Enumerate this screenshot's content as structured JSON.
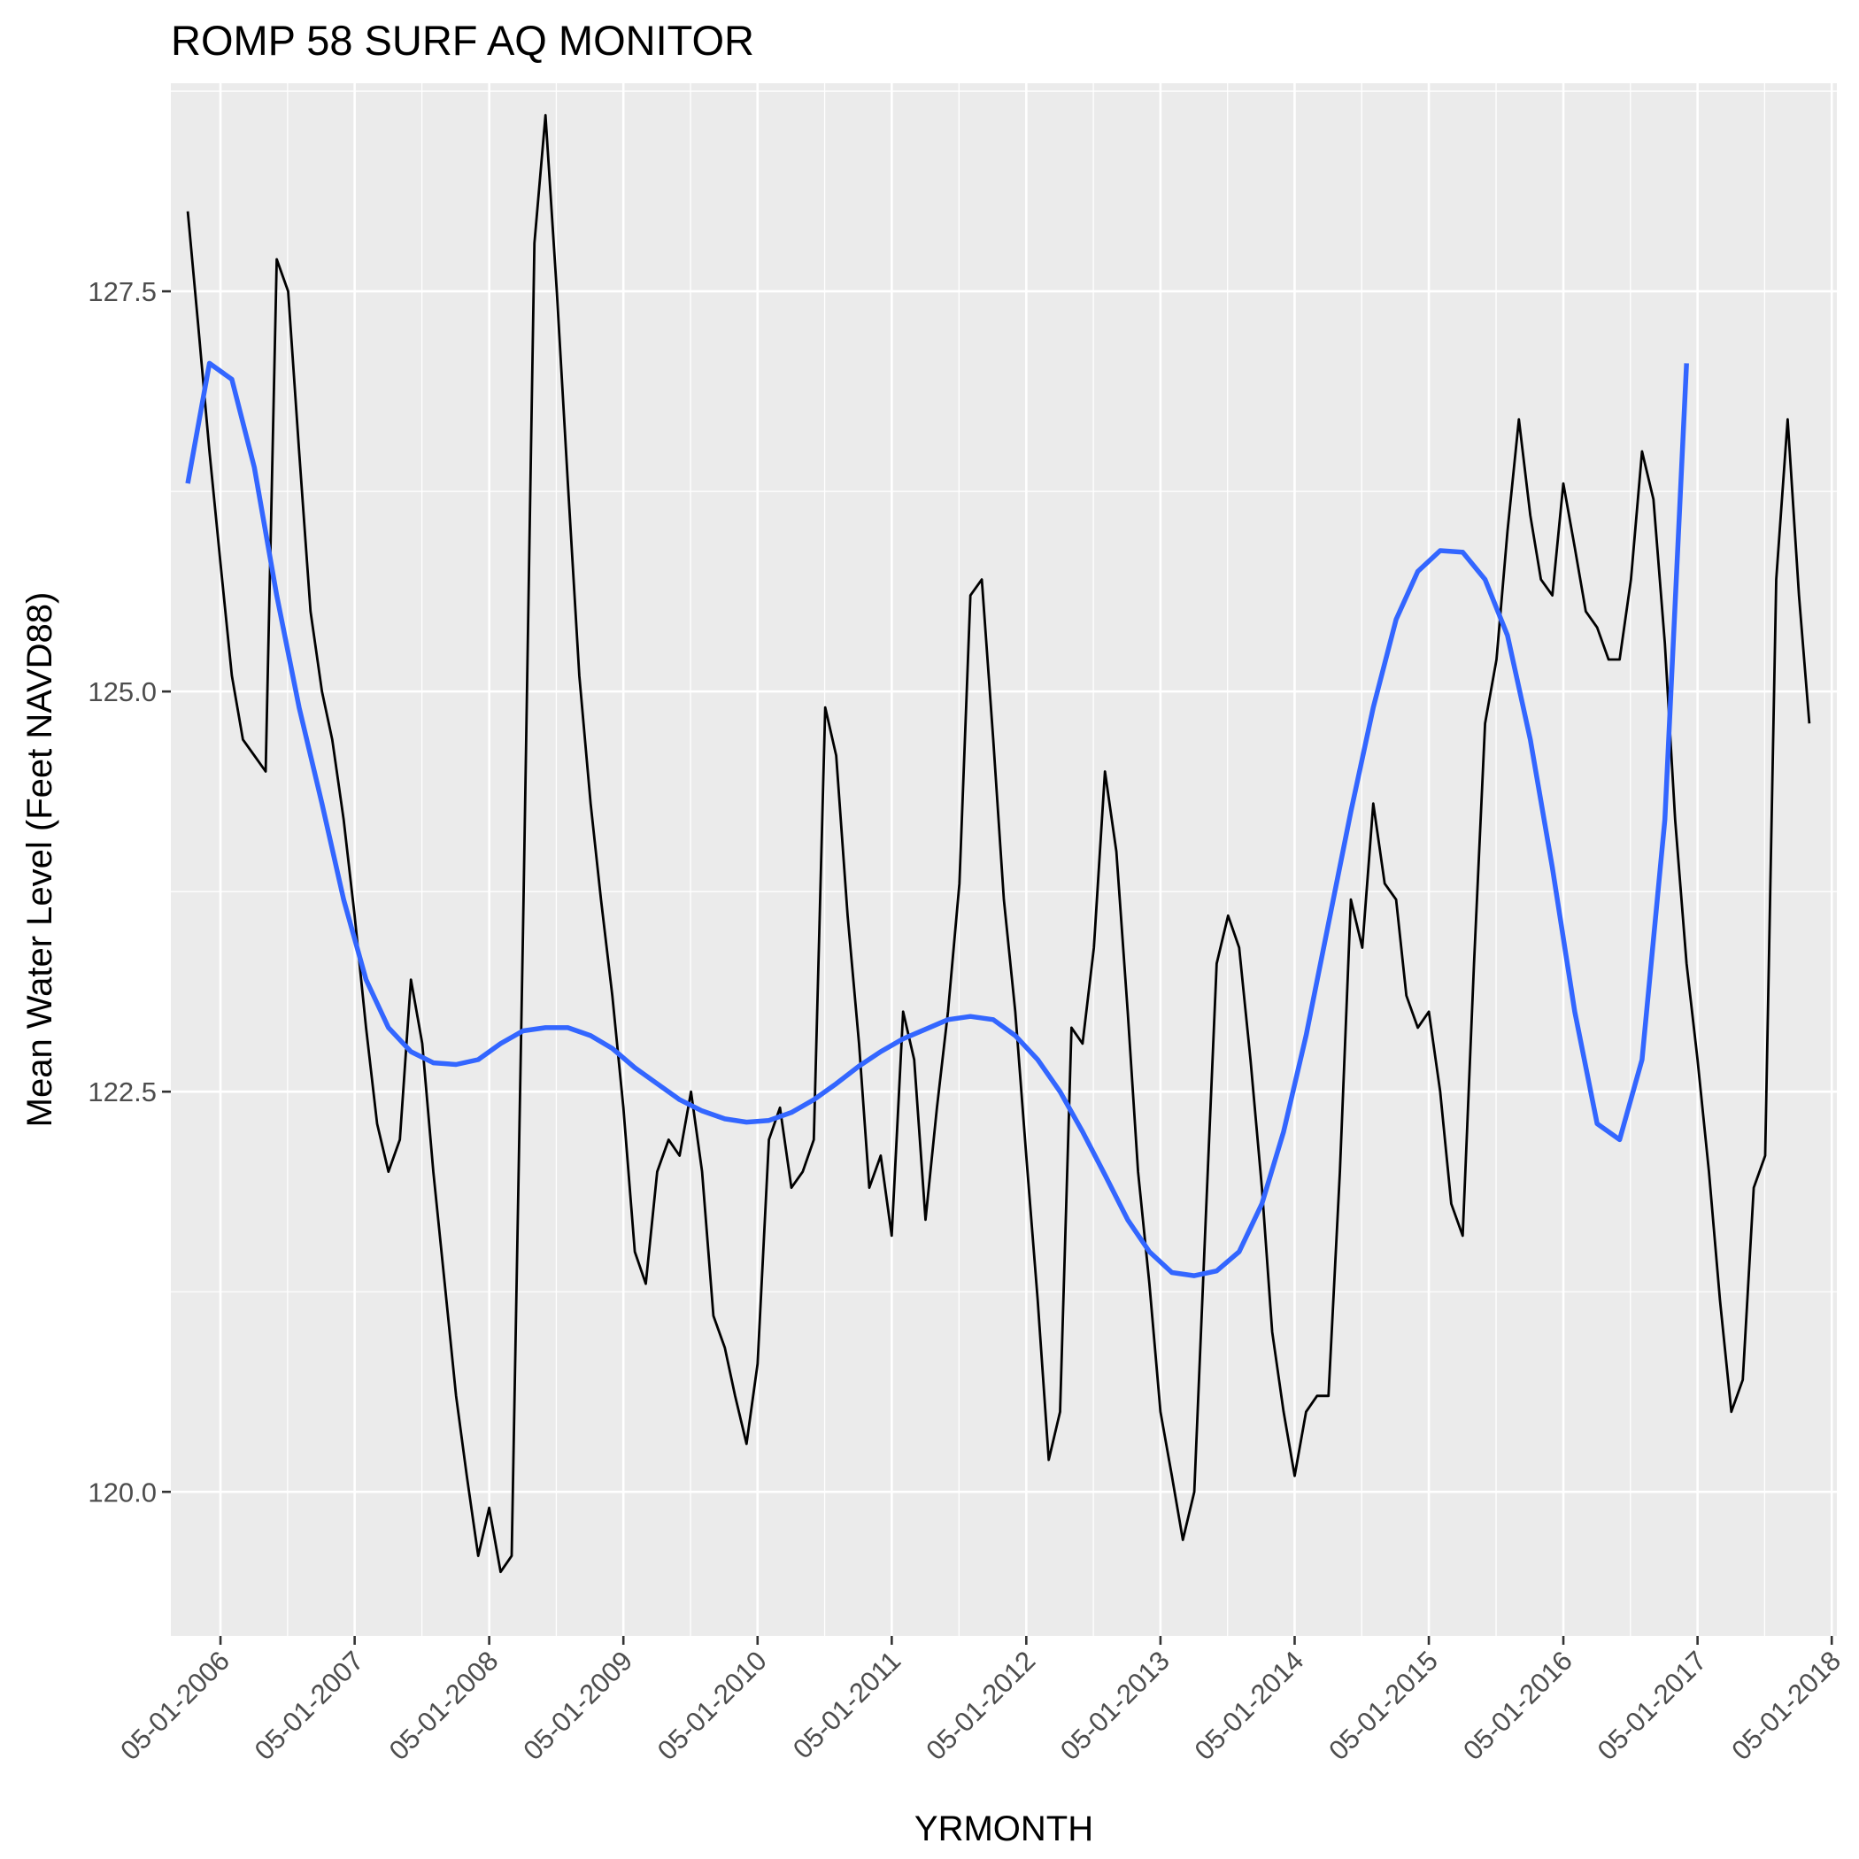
{
  "chart_data": {
    "type": "line",
    "title": "ROMP 58 SURF AQ MONITOR",
    "xlabel": "YRMONTH",
    "ylabel": "Mean Water Level (Feet NAVD88)",
    "x_axis": {
      "type": "date",
      "range": [
        "2005-12-17",
        "2018-05-15"
      ],
      "ticks": [
        "2006-05-01",
        "2007-05-01",
        "2008-05-01",
        "2009-05-01",
        "2010-05-01",
        "2011-05-01",
        "2012-05-01",
        "2013-05-01",
        "2014-05-01",
        "2015-05-01",
        "2016-05-01",
        "2017-05-01",
        "2018-05-01"
      ],
      "tick_labels": [
        "05-01-2006",
        "05-01-2007",
        "05-01-2008",
        "05-01-2009",
        "05-01-2010",
        "05-01-2011",
        "05-01-2012",
        "05-01-2013",
        "05-01-2014",
        "05-01-2015",
        "05-01-2016",
        "05-01-2017",
        "05-01-2018"
      ]
    },
    "y_axis": {
      "range": [
        119.1,
        128.8
      ],
      "ticks": [
        120.0,
        122.5,
        125.0,
        127.5
      ],
      "tick_labels": [
        "120.0",
        "122.5",
        "125.0",
        "127.5"
      ]
    },
    "grid": true,
    "series": [
      {
        "style": "observed",
        "color": "#000000",
        "points": [
          [
            "2006-02-01",
            128.0
          ],
          [
            "2006-03-01",
            127.3
          ],
          [
            "2006-04-01",
            126.5
          ],
          [
            "2006-05-01",
            125.8
          ],
          [
            "2006-06-01",
            125.1
          ],
          [
            "2006-07-01",
            124.7
          ],
          [
            "2006-08-01",
            124.6
          ],
          [
            "2006-09-01",
            124.5
          ],
          [
            "2006-10-01",
            127.7
          ],
          [
            "2006-11-01",
            127.5
          ],
          [
            "2006-12-01",
            126.5
          ],
          [
            "2007-01-01",
            125.5
          ],
          [
            "2007-02-01",
            125.0
          ],
          [
            "2007-03-01",
            124.7
          ],
          [
            "2007-04-01",
            124.2
          ],
          [
            "2007-05-01",
            123.6
          ],
          [
            "2007-06-01",
            122.9
          ],
          [
            "2007-07-01",
            122.3
          ],
          [
            "2007-08-01",
            122.0
          ],
          [
            "2007-09-01",
            122.2
          ],
          [
            "2007-10-01",
            123.2
          ],
          [
            "2007-11-01",
            122.8
          ],
          [
            "2007-12-01",
            122.0
          ],
          [
            "2008-01-01",
            121.3
          ],
          [
            "2008-02-01",
            120.6
          ],
          [
            "2008-03-01",
            120.1
          ],
          [
            "2008-04-01",
            119.6
          ],
          [
            "2008-05-01",
            119.9
          ],
          [
            "2008-06-01",
            119.5
          ],
          [
            "2008-07-01",
            119.6
          ],
          [
            "2008-08-01",
            123.5
          ],
          [
            "2008-09-01",
            127.8
          ],
          [
            "2008-10-01",
            128.6
          ],
          [
            "2008-11-01",
            127.5
          ],
          [
            "2008-12-01",
            126.3
          ],
          [
            "2009-01-01",
            125.1
          ],
          [
            "2009-02-01",
            124.3
          ],
          [
            "2009-03-01",
            123.7
          ],
          [
            "2009-04-01",
            123.1
          ],
          [
            "2009-05-01",
            122.4
          ],
          [
            "2009-06-01",
            121.5
          ],
          [
            "2009-07-01",
            121.3
          ],
          [
            "2009-08-01",
            122.0
          ],
          [
            "2009-09-01",
            122.2
          ],
          [
            "2009-10-01",
            122.1
          ],
          [
            "2009-11-01",
            122.5
          ],
          [
            "2009-12-01",
            122.0
          ],
          [
            "2010-01-01",
            121.1
          ],
          [
            "2010-02-01",
            120.9
          ],
          [
            "2010-03-01",
            120.6
          ],
          [
            "2010-04-01",
            120.3
          ],
          [
            "2010-05-01",
            120.8
          ],
          [
            "2010-06-01",
            122.2
          ],
          [
            "2010-07-01",
            122.4
          ],
          [
            "2010-08-01",
            121.9
          ],
          [
            "2010-09-01",
            122.0
          ],
          [
            "2010-10-01",
            122.2
          ],
          [
            "2010-11-01",
            124.9
          ],
          [
            "2010-12-01",
            124.6
          ],
          [
            "2011-01-01",
            123.6
          ],
          [
            "2011-02-01",
            122.8
          ],
          [
            "2011-03-01",
            121.9
          ],
          [
            "2011-04-01",
            122.1
          ],
          [
            "2011-05-01",
            121.6
          ],
          [
            "2011-06-01",
            123.0
          ],
          [
            "2011-07-01",
            122.7
          ],
          [
            "2011-08-01",
            121.7
          ],
          [
            "2011-09-01",
            122.4
          ],
          [
            "2011-10-01",
            123.0
          ],
          [
            "2011-11-01",
            123.8
          ],
          [
            "2011-12-01",
            125.6
          ],
          [
            "2012-01-01",
            125.7
          ],
          [
            "2012-02-01",
            124.7
          ],
          [
            "2012-03-01",
            123.7
          ],
          [
            "2012-04-01",
            123.0
          ],
          [
            "2012-05-01",
            122.1
          ],
          [
            "2012-06-01",
            121.2
          ],
          [
            "2012-07-01",
            120.2
          ],
          [
            "2012-08-01",
            120.5
          ],
          [
            "2012-09-01",
            122.9
          ],
          [
            "2012-10-01",
            122.8
          ],
          [
            "2012-11-01",
            123.4
          ],
          [
            "2012-12-01",
            124.5
          ],
          [
            "2013-01-01",
            124.0
          ],
          [
            "2013-02-01",
            123.0
          ],
          [
            "2013-03-01",
            122.0
          ],
          [
            "2013-04-01",
            121.3
          ],
          [
            "2013-05-01",
            120.5
          ],
          [
            "2013-06-01",
            120.1
          ],
          [
            "2013-07-01",
            119.7
          ],
          [
            "2013-08-01",
            120.0
          ],
          [
            "2013-09-01",
            121.7
          ],
          [
            "2013-10-01",
            123.3
          ],
          [
            "2013-11-01",
            123.6
          ],
          [
            "2013-12-01",
            123.4
          ],
          [
            "2014-01-01",
            122.7
          ],
          [
            "2014-02-01",
            121.9
          ],
          [
            "2014-03-01",
            121.0
          ],
          [
            "2014-04-01",
            120.5
          ],
          [
            "2014-05-01",
            120.1
          ],
          [
            "2014-06-01",
            120.5
          ],
          [
            "2014-07-01",
            120.6
          ],
          [
            "2014-08-01",
            120.6
          ],
          [
            "2014-09-01",
            122.0
          ],
          [
            "2014-10-01",
            123.7
          ],
          [
            "2014-11-01",
            123.4
          ],
          [
            "2014-12-01",
            124.3
          ],
          [
            "2015-01-01",
            123.8
          ],
          [
            "2015-02-01",
            123.7
          ],
          [
            "2015-03-01",
            123.1
          ],
          [
            "2015-04-01",
            122.9
          ],
          [
            "2015-05-01",
            123.0
          ],
          [
            "2015-06-01",
            122.5
          ],
          [
            "2015-07-01",
            121.8
          ],
          [
            "2015-08-01",
            121.6
          ],
          [
            "2015-09-01",
            123.3
          ],
          [
            "2015-10-01",
            124.8
          ],
          [
            "2015-11-01",
            125.2
          ],
          [
            "2015-12-01",
            126.0
          ],
          [
            "2016-01-01",
            126.7
          ],
          [
            "2016-02-01",
            126.1
          ],
          [
            "2016-03-01",
            125.7
          ],
          [
            "2016-04-01",
            125.6
          ],
          [
            "2016-05-01",
            126.3
          ],
          [
            "2016-06-01",
            125.9
          ],
          [
            "2016-07-01",
            125.5
          ],
          [
            "2016-08-01",
            125.4
          ],
          [
            "2016-09-01",
            125.2
          ],
          [
            "2016-10-01",
            125.2
          ],
          [
            "2016-11-01",
            125.7
          ],
          [
            "2016-12-01",
            126.5
          ],
          [
            "2017-01-01",
            126.2
          ],
          [
            "2017-02-01",
            125.3
          ],
          [
            "2017-03-01",
            124.2
          ],
          [
            "2017-04-01",
            123.3
          ],
          [
            "2017-05-01",
            122.7
          ],
          [
            "2017-06-01",
            122.0
          ],
          [
            "2017-07-01",
            121.2
          ],
          [
            "2017-08-01",
            120.5
          ],
          [
            "2017-09-01",
            120.7
          ],
          [
            "2017-10-01",
            121.9
          ],
          [
            "2017-11-01",
            122.1
          ],
          [
            "2017-12-01",
            125.7
          ],
          [
            "2018-01-01",
            126.7
          ],
          [
            "2018-02-01",
            125.6
          ],
          [
            "2018-03-01",
            124.8
          ]
        ]
      },
      {
        "style": "smoothed",
        "color": "#3366FF",
        "points": [
          [
            "2006-02-01",
            126.3
          ],
          [
            "2006-04-01",
            127.05
          ],
          [
            "2006-06-01",
            126.95
          ],
          [
            "2006-08-01",
            126.4
          ],
          [
            "2006-10-01",
            125.6
          ],
          [
            "2006-12-01",
            124.9
          ],
          [
            "2007-02-01",
            124.3
          ],
          [
            "2007-04-01",
            123.7
          ],
          [
            "2007-06-01",
            123.2
          ],
          [
            "2007-08-01",
            122.9
          ],
          [
            "2007-10-01",
            122.75
          ],
          [
            "2007-12-01",
            122.68
          ],
          [
            "2008-02-01",
            122.67
          ],
          [
            "2008-04-01",
            122.7
          ],
          [
            "2008-06-01",
            122.8
          ],
          [
            "2008-08-01",
            122.88
          ],
          [
            "2008-10-01",
            122.9
          ],
          [
            "2008-12-01",
            122.9
          ],
          [
            "2009-02-01",
            122.85
          ],
          [
            "2009-04-01",
            122.77
          ],
          [
            "2009-06-01",
            122.65
          ],
          [
            "2009-08-01",
            122.55
          ],
          [
            "2009-10-01",
            122.45
          ],
          [
            "2009-12-01",
            122.38
          ],
          [
            "2010-02-01",
            122.33
          ],
          [
            "2010-04-01",
            122.31
          ],
          [
            "2010-06-01",
            122.32
          ],
          [
            "2010-08-01",
            122.37
          ],
          [
            "2010-10-01",
            122.45
          ],
          [
            "2010-12-01",
            122.55
          ],
          [
            "2011-02-01",
            122.66
          ],
          [
            "2011-04-01",
            122.75
          ],
          [
            "2011-06-01",
            122.83
          ],
          [
            "2011-08-01",
            122.89
          ],
          [
            "2011-10-01",
            122.95
          ],
          [
            "2011-12-01",
            122.97
          ],
          [
            "2012-02-01",
            122.95
          ],
          [
            "2012-04-01",
            122.85
          ],
          [
            "2012-06-01",
            122.7
          ],
          [
            "2012-08-01",
            122.5
          ],
          [
            "2012-10-01",
            122.25
          ],
          [
            "2012-12-01",
            121.98
          ],
          [
            "2013-02-01",
            121.7
          ],
          [
            "2013-04-01",
            121.5
          ],
          [
            "2013-06-01",
            121.37
          ],
          [
            "2013-08-01",
            121.35
          ],
          [
            "2013-10-01",
            121.38
          ],
          [
            "2013-12-01",
            121.5
          ],
          [
            "2014-02-01",
            121.8
          ],
          [
            "2014-04-01",
            122.25
          ],
          [
            "2014-06-01",
            122.85
          ],
          [
            "2014-08-01",
            123.55
          ],
          [
            "2014-10-01",
            124.25
          ],
          [
            "2014-12-01",
            124.9
          ],
          [
            "2015-02-01",
            125.45
          ],
          [
            "2015-04-01",
            125.75
          ],
          [
            "2015-06-01",
            125.88
          ],
          [
            "2015-08-01",
            125.87
          ],
          [
            "2015-10-01",
            125.7
          ],
          [
            "2015-12-01",
            125.35
          ],
          [
            "2016-02-01",
            124.7
          ],
          [
            "2016-04-01",
            123.9
          ],
          [
            "2016-06-01",
            123.0
          ],
          [
            "2016-08-01",
            122.3
          ],
          [
            "2016-10-01",
            122.2
          ],
          [
            "2016-12-01",
            122.7
          ],
          [
            "2017-02-01",
            124.2
          ],
          [
            "2017-04-01",
            127.05
          ]
        ]
      }
    ]
  }
}
